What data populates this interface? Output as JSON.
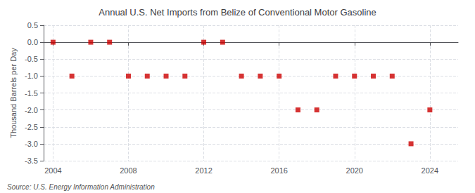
{
  "chart_data": {
    "type": "scatter",
    "title": "Annual U.S. Net Imports from Belize of Conventional Motor Gasoline",
    "ylabel": "Thousand Barrels per Day",
    "annotations": [
      "Source: U.S. Energy Information Administration"
    ],
    "x": [
      2004,
      2005,
      2006,
      2007,
      2008,
      2009,
      2010,
      2011,
      2012,
      2013,
      2014,
      2015,
      2016,
      2017,
      2018,
      2019,
      2020,
      2021,
      2022,
      2023,
      2024
    ],
    "values": [
      0,
      -1,
      0,
      0,
      -1,
      -1,
      -1,
      -1,
      0,
      0,
      -1,
      -1,
      -1,
      -2,
      -2,
      -1,
      -1,
      -1,
      -1,
      -3,
      -2
    ],
    "color": "#cc0000",
    "marker": "square",
    "xlim": [
      2003.5,
      2025.5
    ],
    "xticks": [
      2004,
      2008,
      2012,
      2016,
      2020,
      2024
    ],
    "ylim": [
      -3.5,
      0.5
    ],
    "yticks": [
      0.5,
      {
        "value": 0,
        "label": "0.0"
      },
      -0.5,
      {
        "value": -1,
        "label": "-1.0"
      },
      -1.5,
      {
        "value": -2,
        "label": "-2.0"
      },
      -2.5,
      {
        "value": -3,
        "label": "-3.0"
      },
      -3.5
    ],
    "grid": true
  }
}
